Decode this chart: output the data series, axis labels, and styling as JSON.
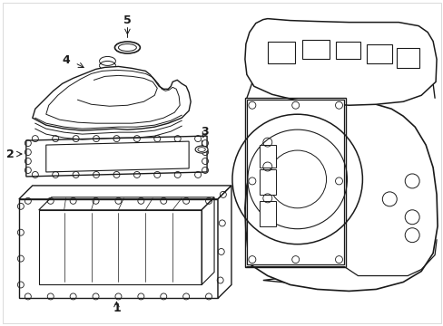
{
  "background_color": "#ffffff",
  "line_color": "#1a1a1a",
  "label_color": "#000000",
  "fig_w": 4.89,
  "fig_h": 3.6,
  "dpi": 100
}
